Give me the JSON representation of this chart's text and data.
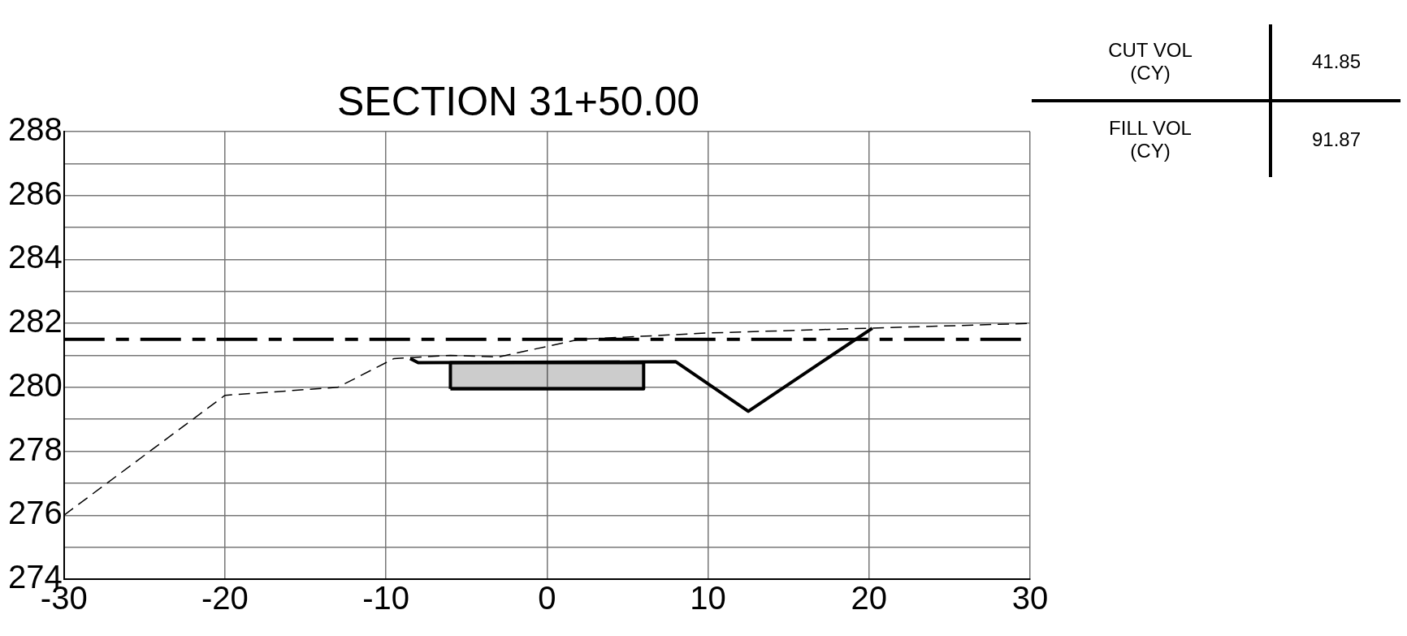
{
  "chart_data": {
    "type": "line",
    "title": "SECTION 31+50.00",
    "xlim": [
      -30,
      30
    ],
    "xticks": [
      -30,
      -20,
      -10,
      0,
      10,
      20,
      30
    ],
    "ylim": [
      274,
      288
    ],
    "yticks": [
      274,
      {
        "value": 275,
        "label": null
      },
      276,
      {
        "value": 277,
        "label": null
      },
      278,
      {
        "value": 279,
        "label": null
      },
      280,
      {
        "value": 281,
        "label": null
      },
      282,
      {
        "value": 283,
        "label": null
      },
      284,
      {
        "value": 285,
        "label": null
      },
      286,
      {
        "value": 287,
        "label": null
      },
      288
    ],
    "grid": true,
    "legend": false,
    "marker": "none",
    "series": [
      {
        "color": "#000000",
        "line_style": "dashed",
        "x": [
          -30,
          -20,
          -13,
          -9.5,
          -6,
          -3,
          2,
          10,
          20,
          30
        ],
        "values": [
          276,
          279.75,
          280,
          280.9,
          281,
          280.95,
          281.5,
          281.7,
          281.85,
          282
        ]
      },
      {
        "color": "#000000",
        "line_style": "solid",
        "x": [
          -8.5,
          -8,
          8,
          12.5,
          20.2
        ],
        "values": [
          280.9,
          280.77,
          280.8,
          279.25,
          281.85
        ]
      },
      {
        "type": "area",
        "color": "#000000",
        "line_style": "solid",
        "x": [
          -6,
          -6,
          6,
          6,
          -6
        ],
        "values": [
          279.95,
          280.77,
          280.77,
          279.95,
          279.95
        ]
      }
    ],
    "ref_lines": [
      {
        "axis": "y",
        "value": 281.5,
        "color": "#000000",
        "line_style": "dashed"
      }
    ],
    "annotations": [
      "CUT VOL\n(CY)",
      "41.85",
      "FILL VOL\n(CY)",
      "91.87"
    ]
  }
}
